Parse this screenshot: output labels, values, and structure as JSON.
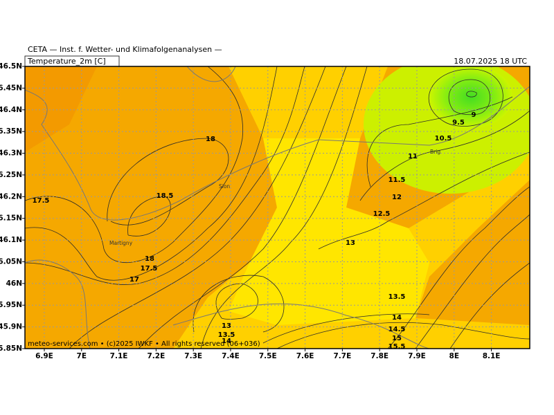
{
  "header": {
    "source": "CETA — Inst. f. Wetter- und Klimafolgenanalysen —",
    "variable": "Temperature_2m [C]",
    "valid_time": "18.07.2025 18 UTC"
  },
  "map": {
    "lonlim": [
      6.848,
      8.203
    ],
    "latlim": [
      45.85,
      46.5
    ],
    "grid": true,
    "lon_ticks": [
      {
        "value": 6.9,
        "label": "6.9E"
      },
      {
        "value": 7.0,
        "label": "7E"
      },
      {
        "value": 7.1,
        "label": "7.1E"
      },
      {
        "value": 7.2,
        "label": "7.2E"
      },
      {
        "value": 7.3,
        "label": "7.3E"
      },
      {
        "value": 7.4,
        "label": "7.4E"
      },
      {
        "value": 7.5,
        "label": "7.5E"
      },
      {
        "value": 7.6,
        "label": "7.6E"
      },
      {
        "value": 7.7,
        "label": "7.7E"
      },
      {
        "value": 7.8,
        "label": "7.8E"
      },
      {
        "value": 7.9,
        "label": "7.9E"
      },
      {
        "value": 8.0,
        "label": "8E"
      },
      {
        "value": 8.1,
        "label": "8.1E"
      }
    ],
    "lat_ticks": [
      {
        "value": 46.5,
        "label": "46.5N"
      },
      {
        "value": 46.45,
        "label": "46.45N"
      },
      {
        "value": 46.4,
        "label": "46.4N"
      },
      {
        "value": 46.35,
        "label": "46.35N"
      },
      {
        "value": 46.3,
        "label": "46.3N"
      },
      {
        "value": 46.25,
        "label": "46.25N"
      },
      {
        "value": 46.2,
        "label": "46.2N"
      },
      {
        "value": 46.15,
        "label": "46.15N"
      },
      {
        "value": 46.1,
        "label": "46.1N"
      },
      {
        "value": 46.05,
        "label": "46.05N"
      },
      {
        "value": 46.0,
        "label": "46N"
      },
      {
        "value": 45.95,
        "label": "45.95N"
      },
      {
        "value": 45.9,
        "label": "45.9N"
      },
      {
        "value": 45.85,
        "label": "45.85N"
      }
    ],
    "places": [
      "Sion",
      "Martigny",
      "Brig"
    ],
    "contour_labels": [
      18,
      18.5,
      17.5,
      18,
      17.5,
      17,
      13,
      13.5,
      14,
      9,
      9.5,
      10.5,
      11,
      11.5,
      12,
      12.5,
      13,
      13.5,
      14,
      14.5,
      15,
      15.5
    ]
  },
  "footer": "meteo-services.com • (c)2025 IWKF • All rights reserved (06+036)"
}
